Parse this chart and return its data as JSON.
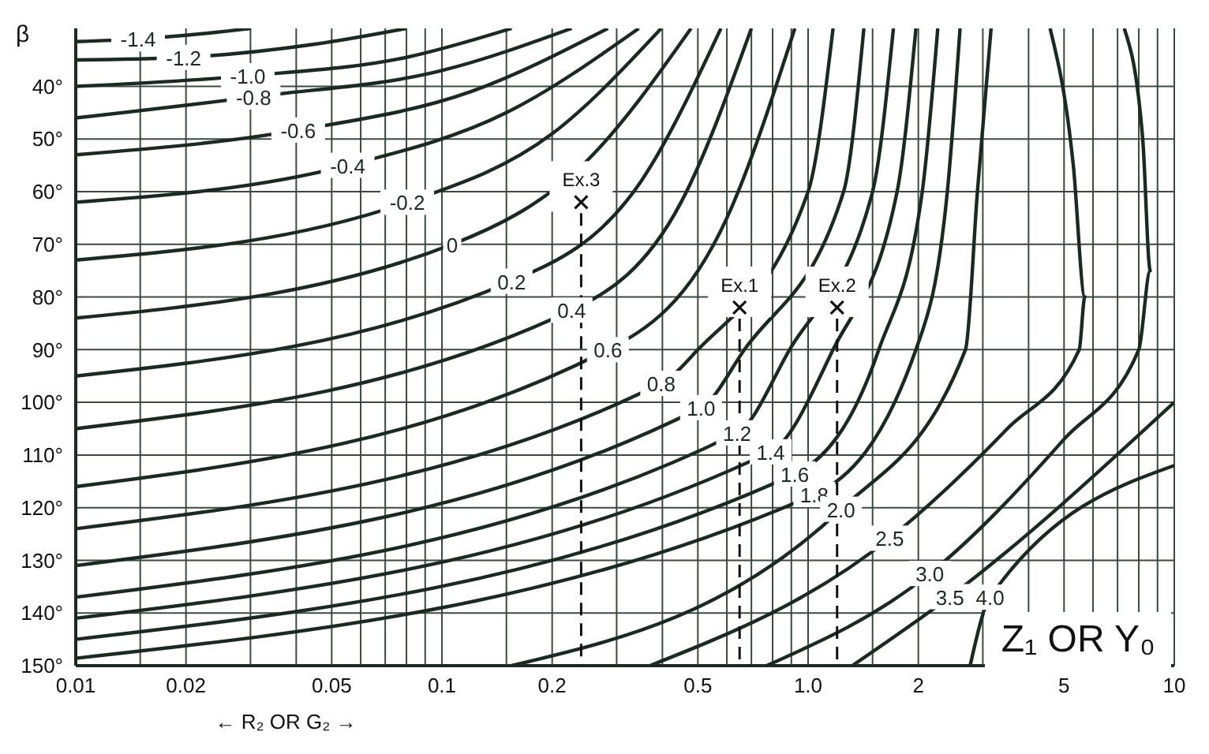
{
  "chart_data": {
    "type": "line",
    "ylabel": "β",
    "xlabel": "← R₂ OR G₂ →",
    "annotations": [
      "Z₁ OR Y₀"
    ],
    "log": "x",
    "grid": true,
    "marker": "none",
    "xlim": [
      0.01,
      10
    ],
    "ylim": [
      150,
      29
    ],
    "xticks": [
      0.01,
      {
        "value": 0.015,
        "label": null
      },
      0.02,
      {
        "value": 0.03,
        "label": null
      },
      {
        "value": 0.04,
        "label": null
      },
      0.05,
      {
        "value": 0.06,
        "label": null
      },
      {
        "value": 0.07,
        "label": null
      },
      {
        "value": 0.08,
        "label": null
      },
      {
        "value": 0.09,
        "label": null
      },
      0.1,
      {
        "value": 0.15,
        "label": null
      },
      0.2,
      {
        "value": 0.3,
        "label": null
      },
      {
        "value": 0.4,
        "label": null
      },
      0.5,
      {
        "value": 0.6,
        "label": null
      },
      {
        "value": 0.7,
        "label": null
      },
      {
        "value": 0.8,
        "label": null
      },
      {
        "value": 0.9,
        "label": null
      },
      {
        "value": 1,
        "label": "1.0"
      },
      {
        "value": 1.5,
        "label": null
      },
      2,
      {
        "value": 3,
        "label": null
      },
      {
        "value": 4,
        "label": null
      },
      5,
      {
        "value": 6,
        "label": null
      },
      {
        "value": 7,
        "label": null
      },
      {
        "value": 8,
        "label": null
      },
      {
        "value": 9,
        "label": null
      },
      10
    ],
    "yticks": [
      {
        "value": 40,
        "label": "40°"
      },
      {
        "value": 50,
        "label": "50°"
      },
      {
        "value": 60,
        "label": "60°"
      },
      {
        "value": 70,
        "label": "70°"
      },
      {
        "value": 80,
        "label": "80°"
      },
      {
        "value": 90,
        "label": "90°"
      },
      {
        "value": 100,
        "label": "100°"
      },
      {
        "value": 110,
        "label": "110°"
      },
      {
        "value": 120,
        "label": "120°"
      },
      {
        "value": 130,
        "label": "130°"
      },
      {
        "value": 140,
        "label": "140°"
      },
      {
        "value": 150,
        "label": "150°"
      }
    ],
    "series": [
      {
        "name": "-1.4",
        "color": "#1a2a22",
        "x": [
          0.01,
          0.0148,
          0.026,
          0.03
        ],
        "values": [
          31.5,
          31,
          29.5,
          29
        ]
      },
      {
        "name": "-1.2",
        "color": "#1a2a22",
        "x": [
          0.01,
          0.0197,
          0.045,
          0.08
        ],
        "values": [
          35,
          34.5,
          32,
          29
        ]
      },
      {
        "name": "-1.0",
        "color": "#1a2a22",
        "x": [
          0.01,
          0.0295,
          0.08,
          0.155
        ],
        "values": [
          40,
          38,
          34.5,
          29
        ]
      },
      {
        "name": "-0.8",
        "color": "#1a2a22",
        "x": [
          0.01,
          0.0306,
          0.1,
          0.226
        ],
        "values": [
          46,
          42,
          37,
          29
        ]
      },
      {
        "name": "-0.6",
        "color": "#1a2a22",
        "x": [
          0.01,
          0.0405,
          0.12,
          0.284
        ],
        "values": [
          53,
          48.3,
          41,
          29
        ]
      },
      {
        "name": "-0.4",
        "color": "#1a2a22",
        "x": [
          0.01,
          0.0553,
          0.15,
          0.345
        ],
        "values": [
          62,
          55,
          45,
          29
        ]
      },
      {
        "name": "-0.2",
        "color": "#1a2a22",
        "x": [
          0.01,
          0.0804,
          0.2,
          0.397
        ],
        "values": [
          73,
          62,
          49,
          29
        ]
      },
      {
        "name": "0",
        "color": "#1a2a22",
        "x": [
          0.01,
          0.1067,
          0.25,
          0.479
        ],
        "values": [
          84,
          70,
          54,
          29
        ]
      },
      {
        "name": "0.2",
        "color": "#1a2a22",
        "x": [
          0.01,
          0.155,
          0.35,
          0.578
        ],
        "values": [
          95,
          77,
          58,
          29
        ]
      },
      {
        "name": "0.4",
        "color": "#1a2a22",
        "x": [
          0.01,
          0.226,
          0.45,
          0.7
        ],
        "values": [
          105,
          82.5,
          62,
          29
        ]
      },
      {
        "name": "0.6",
        "color": "#1a2a22",
        "x": [
          0.01,
          0.284,
          0.6,
          0.92
        ],
        "values": [
          116,
          90,
          65,
          29
        ]
      },
      {
        "name": "0.8",
        "color": "#1a2a22",
        "x": [
          0.01,
          0.397,
          0.5,
          1,
          1.17
        ],
        "values": [
          124,
          96.4,
          90,
          60,
          29
        ]
      },
      {
        "name": "1.0",
        "color": "#1a2a22",
        "x": [
          0.01,
          0.51,
          0.67,
          1.25,
          1.42
        ],
        "values": [
          131,
          101,
          90,
          60,
          29
        ]
      },
      {
        "name": "1.2",
        "color": "#1a2a22",
        "x": [
          0.01,
          0.64,
          0.89,
          1.5,
          1.71
        ],
        "values": [
          137,
          105.8,
          90,
          60,
          29
        ]
      },
      {
        "name": "1.4",
        "color": "#1a2a22",
        "x": [
          0.01,
          0.79,
          1.17,
          1.75,
          1.97
        ],
        "values": [
          141,
          109.4,
          90,
          60,
          29
        ]
      },
      {
        "name": "1.6",
        "color": "#1a2a22",
        "x": [
          0.01,
          0.92,
          1.56,
          2.05,
          2.26
        ],
        "values": [
          145,
          113.6,
          90,
          60,
          29
        ]
      },
      {
        "name": "1.8",
        "color": "#1a2a22",
        "x": [
          0.01,
          1.04,
          1.97,
          2.4,
          2.6
        ],
        "values": [
          148.6,
          117.5,
          90,
          60,
          29
        ]
      },
      {
        "name": "2.0",
        "color": "#1a2a22",
        "x": [
          0.155,
          1.23,
          2.69,
          2.9,
          3.16
        ],
        "values": [
          150,
          120.3,
          90,
          60,
          29
        ]
      },
      {
        "name": "2.5",
        "color": "#1a2a22",
        "x": [
          0.37,
          1.67,
          3.5,
          5.5,
          5.7,
          5.3,
          4.58
        ],
        "values": [
          150,
          125.8,
          105,
          90,
          80,
          55,
          29
        ]
      },
      {
        "name": "3.0",
        "color": "#1a2a22",
        "x": [
          0.77,
          2.15,
          5,
          8,
          8.6,
          8.2,
          7.3
        ],
        "values": [
          150,
          132.5,
          107,
          90,
          75,
          50,
          29
        ]
      },
      {
        "name": "3.5",
        "color": "#1a2a22",
        "x": [
          1.32,
          2.44,
          10
        ],
        "values": [
          150,
          136.9,
          100
        ]
      },
      {
        "name": "4.0",
        "color": "#1a2a22",
        "x": [
          2.77,
          3.14,
          10
        ],
        "values": [
          150,
          137,
          112
        ]
      },
      {
        "name": "Ex.1",
        "type": "scatter",
        "marker": "cross",
        "line_style": "dashed",
        "color": "#111111",
        "x": [
          0.65
        ],
        "values": [
          82
        ]
      },
      {
        "name": "Ex.2",
        "type": "scatter",
        "marker": "cross",
        "line_style": "dashed",
        "color": "#111111",
        "x": [
          1.2
        ],
        "values": [
          82
        ]
      },
      {
        "name": "Ex.3",
        "type": "scatter",
        "marker": "cross",
        "line_style": "dashed",
        "color": "#111111",
        "x": [
          0.24
        ],
        "values": [
          62
        ]
      }
    ]
  }
}
